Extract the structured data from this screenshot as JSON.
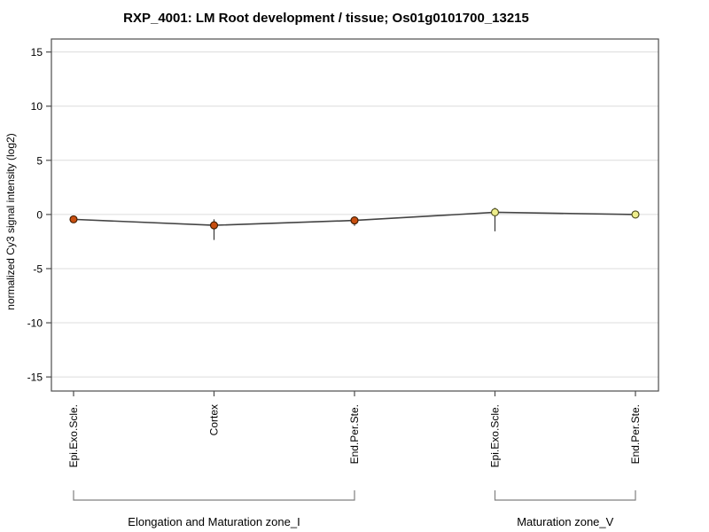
{
  "chart_data": {
    "type": "line",
    "title": "RXP_4001: LM Root development / tissue; Os01g0101700_13215",
    "ylabel": "normalized Cy3 signal intensity (log2)",
    "xlabel": "",
    "ylim": [
      -16.3,
      16.2
    ],
    "yticks": [
      15,
      10,
      5,
      0,
      -5,
      -10,
      -15
    ],
    "grid": true,
    "legend_position": "none",
    "categories": [
      "Epi.Exo.Scle.",
      "Cortex",
      "End.Per.Ste.",
      "Epi.Exo.Scle.",
      "End.Per.Ste."
    ],
    "series": [
      {
        "name": "normalized Cy3 signal",
        "values": [
          -0.45,
          -1.0,
          -0.55,
          0.2,
          0.0
        ],
        "err_hi": [
          null,
          -0.45,
          -0.2,
          0.6,
          null
        ],
        "err_lo": [
          null,
          -2.35,
          -1.05,
          -1.55,
          null
        ],
        "marker_fills": [
          "#c84e0f",
          "#c84e0f",
          "#c84e0f",
          "#eeee8c",
          "#eeee8c"
        ],
        "marker_edges": [
          "#3d1c00",
          "#3d1c00",
          "#3d1c00",
          "#4a4a1a",
          "#4a4a1a"
        ]
      }
    ],
    "groups": [
      {
        "label": "Elongation and Maturation zone_I",
        "start": 0,
        "end": 2
      },
      {
        "label": "Maturation zone_V",
        "start": 3,
        "end": 4
      }
    ],
    "colors": {
      "line": "#444444",
      "error_bar": "#222222",
      "grid": "#dcdcdc",
      "axis": "#4d4d4d",
      "bracket": "#808080",
      "text": "#000000",
      "background": "#ffffff"
    }
  }
}
